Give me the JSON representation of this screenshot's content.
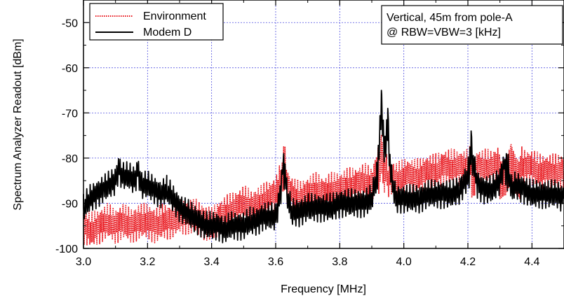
{
  "chart_data": {
    "type": "line",
    "xlabel": "Frequency [MHz]",
    "ylabel": "Spectrum Analyzer Readout [dBm]",
    "xlim": [
      3.0,
      4.5
    ],
    "ylim": [
      -100,
      -45
    ],
    "xticks": [
      3.0,
      3.2,
      3.4,
      3.6,
      3.8,
      4.0,
      4.2,
      4.4
    ],
    "xtick_labels": [
      "3.0",
      "3.2",
      "3.4",
      "3.6",
      "3.8",
      "4.0",
      "4.2",
      "4.4"
    ],
    "yticks": [
      -100,
      -90,
      -80,
      -70,
      -60,
      -50
    ],
    "ytick_labels": [
      "-100",
      "-90",
      "-80",
      "-70",
      "-60",
      "-50"
    ],
    "grid": true,
    "legend_position": "top-left",
    "annotation": [
      "Vertical, 45m from pole-A",
      "@ RBW=VBW=3 [kHz]"
    ],
    "series": [
      {
        "name": "Environment",
        "color": "#e8141b",
        "style": "dotted",
        "x": [
          3.0,
          3.025,
          3.05,
          3.075,
          3.1,
          3.125,
          3.15,
          3.175,
          3.2,
          3.225,
          3.25,
          3.275,
          3.3,
          3.325,
          3.35,
          3.375,
          3.4,
          3.425,
          3.45,
          3.475,
          3.5,
          3.525,
          3.55,
          3.575,
          3.6,
          3.615,
          3.625,
          3.635,
          3.65,
          3.675,
          3.7,
          3.725,
          3.75,
          3.775,
          3.8,
          3.825,
          3.85,
          3.875,
          3.9,
          3.92,
          3.93,
          3.94,
          3.95,
          3.96,
          3.975,
          4.0,
          4.025,
          4.05,
          4.075,
          4.1,
          4.125,
          4.15,
          4.175,
          4.2,
          4.22,
          4.23,
          4.25,
          4.275,
          4.3,
          4.32,
          4.335,
          4.35,
          4.375,
          4.4,
          4.425,
          4.45,
          4.475,
          4.5
        ],
        "values": [
          -95,
          -96,
          -95,
          -94,
          -95,
          -94,
          -95,
          -94,
          -94,
          -95,
          -94,
          -94,
          -93,
          -93,
          -93,
          -94,
          -95,
          -93,
          -92,
          -91,
          -90,
          -91,
          -90,
          -89,
          -88,
          -85,
          -77.5,
          -86,
          -88,
          -89,
          -88,
          -87,
          -88,
          -87,
          -87,
          -86,
          -86,
          -85,
          -86,
          -81,
          -75,
          -80,
          -85,
          -84,
          -85,
          -84,
          -84,
          -84,
          -83,
          -83,
          -82,
          -82,
          -82,
          -82,
          -80,
          -82,
          -82,
          -82,
          -81,
          -80,
          -77,
          -80,
          -82,
          -82,
          -83,
          -83,
          -83,
          -83
        ]
      },
      {
        "name": "Modem D",
        "color": "#000000",
        "style": "solid",
        "x": [
          3.0,
          3.02,
          3.04,
          3.06,
          3.08,
          3.1,
          3.11,
          3.12,
          3.14,
          3.16,
          3.17,
          3.18,
          3.2,
          3.22,
          3.24,
          3.26,
          3.28,
          3.3,
          3.32,
          3.34,
          3.36,
          3.38,
          3.4,
          3.42,
          3.44,
          3.46,
          3.48,
          3.5,
          3.52,
          3.54,
          3.56,
          3.58,
          3.6,
          3.615,
          3.625,
          3.635,
          3.65,
          3.675,
          3.7,
          3.725,
          3.75,
          3.775,
          3.8,
          3.825,
          3.85,
          3.875,
          3.9,
          3.915,
          3.93,
          3.94,
          3.95,
          3.96,
          3.975,
          4.0,
          4.025,
          4.05,
          4.075,
          4.1,
          4.125,
          4.15,
          4.175,
          4.2,
          4.21,
          4.22,
          4.23,
          4.25,
          4.275,
          4.3,
          4.32,
          4.335,
          4.35,
          4.375,
          4.4,
          4.425,
          4.45,
          4.475,
          4.5
        ],
        "values": [
          -91,
          -89,
          -88,
          -87,
          -86,
          -85,
          -82,
          -84,
          -84,
          -85,
          -82.5,
          -86,
          -86,
          -87,
          -88,
          -87,
          -89,
          -91,
          -92,
          -93,
          -94,
          -95,
          -95,
          -95,
          -96,
          -95,
          -95,
          -95,
          -94,
          -94,
          -93,
          -93,
          -93,
          -88,
          -79,
          -88,
          -92,
          -92,
          -91,
          -91,
          -91,
          -91,
          -90,
          -90,
          -90,
          -90,
          -89,
          -84,
          -65,
          -76,
          -69,
          -84,
          -89,
          -89,
          -89,
          -89,
          -88,
          -88,
          -88,
          -88,
          -87,
          -84,
          -74,
          -82,
          -86,
          -87,
          -87,
          -85,
          -79,
          -87,
          -86,
          -87,
          -88,
          -88,
          -88,
          -88,
          -89
        ]
      }
    ]
  }
}
